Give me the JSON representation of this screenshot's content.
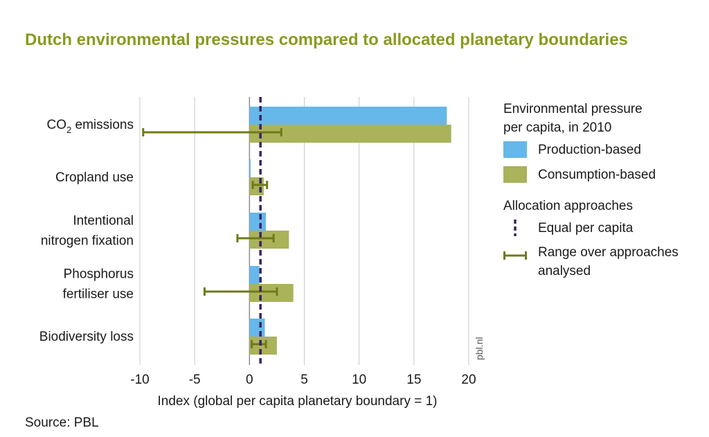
{
  "title": "Dutch environmental pressures compared to allocated planetary boundaries",
  "source": "Source: PBL",
  "watermark": "pbl.nl",
  "colors": {
    "production": "#66b7ea",
    "consumption": "#aab25a",
    "range": "#6f7a18",
    "equal_line": "#3b2263",
    "title": "#8a9a1e",
    "grid": "#c8c8c8"
  },
  "legend": {
    "heading_line1": "Environmental pressure",
    "heading_line2": "per capita, in 2010",
    "production_label": "Production-based",
    "consumption_label": "Consumption-based",
    "allocation_heading": "Allocation approaches",
    "equal_label": "Equal per capita",
    "range_label_line1": "Range over approaches",
    "range_label_line2": "analysed"
  },
  "chart_data": {
    "type": "bar",
    "orientation": "horizontal",
    "xlabel": "Index (global per capita planetary boundary = 1)",
    "xlim": [
      -10,
      20
    ],
    "xticks": [
      -10,
      -5,
      0,
      5,
      10,
      15,
      20
    ],
    "grid": true,
    "equal_per_capita": 1,
    "categories": [
      {
        "label": [
          "CO₂ emissions"
        ],
        "production": 18.0,
        "consumption": 18.4,
        "range": [
          -9.7,
          2.9
        ]
      },
      {
        "label": [
          "Cropland use"
        ],
        "production": 0.1,
        "consumption": 1.3,
        "range": [
          0.3,
          1.6
        ]
      },
      {
        "label": [
          "Intentional",
          "nitrogen fixation"
        ],
        "production": 1.5,
        "consumption": 3.6,
        "range": [
          -1.1,
          2.2
        ]
      },
      {
        "label": [
          "Phosphorus",
          "fertiliser use"
        ],
        "production": 0.9,
        "consumption": 4.0,
        "range": [
          -4.1,
          2.5
        ]
      },
      {
        "label": [
          "Biodiversity loss"
        ],
        "production": 1.4,
        "consumption": 2.5,
        "range": [
          0.2,
          1.5
        ]
      }
    ],
    "series": [
      {
        "name": "Production-based",
        "key": "production"
      },
      {
        "name": "Consumption-based",
        "key": "consumption"
      }
    ]
  }
}
